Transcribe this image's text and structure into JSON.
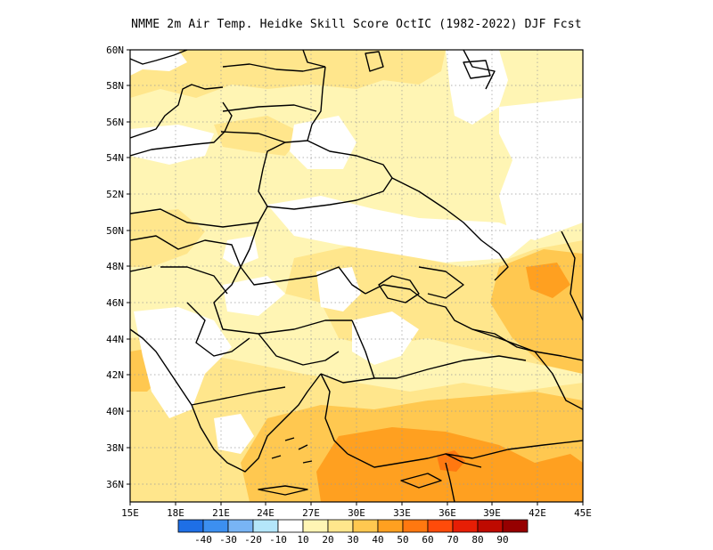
{
  "title": "NMME  2m Air Temp. Heidke Skill Score OctIC (1982-2022) DJF Fcst",
  "map": {
    "lon_range": [
      15,
      45
    ],
    "lat_range": [
      35,
      60
    ],
    "grid": "dotted",
    "lat_ticks": [
      "36N",
      "38N",
      "40N",
      "42N",
      "44N",
      "46N",
      "48N",
      "50N",
      "52N",
      "54N",
      "56N",
      "58N",
      "60N"
    ],
    "lon_ticks": [
      "15E",
      "18E",
      "21E",
      "24E",
      "27E",
      "30E",
      "33E",
      "36E",
      "39E",
      "42E",
      "45E"
    ]
  },
  "colorbar": {
    "labels": [
      "-40",
      "-30",
      "-20",
      "-10",
      "10",
      "20",
      "30",
      "40",
      "50",
      "60",
      "70",
      "80",
      "90"
    ],
    "colors": [
      "#1e6fe6",
      "#3c8ff0",
      "#78b4f5",
      "#b4e6fa",
      "#ffffff",
      "#fff5b4",
      "#ffe68c",
      "#ffc850",
      "#ffa020",
      "#ff7810",
      "#ff4b0a",
      "#e61e05",
      "#be0a00",
      "#960000"
    ]
  },
  "colors": {
    "land_low": "#fff5b4",
    "land_mid": "#ffe68c",
    "land_high": "#ffc850",
    "land_peak": "#ffa020",
    "land_max": "#ff7810",
    "no_skill": "#ffffff",
    "borders": "#000000"
  }
}
